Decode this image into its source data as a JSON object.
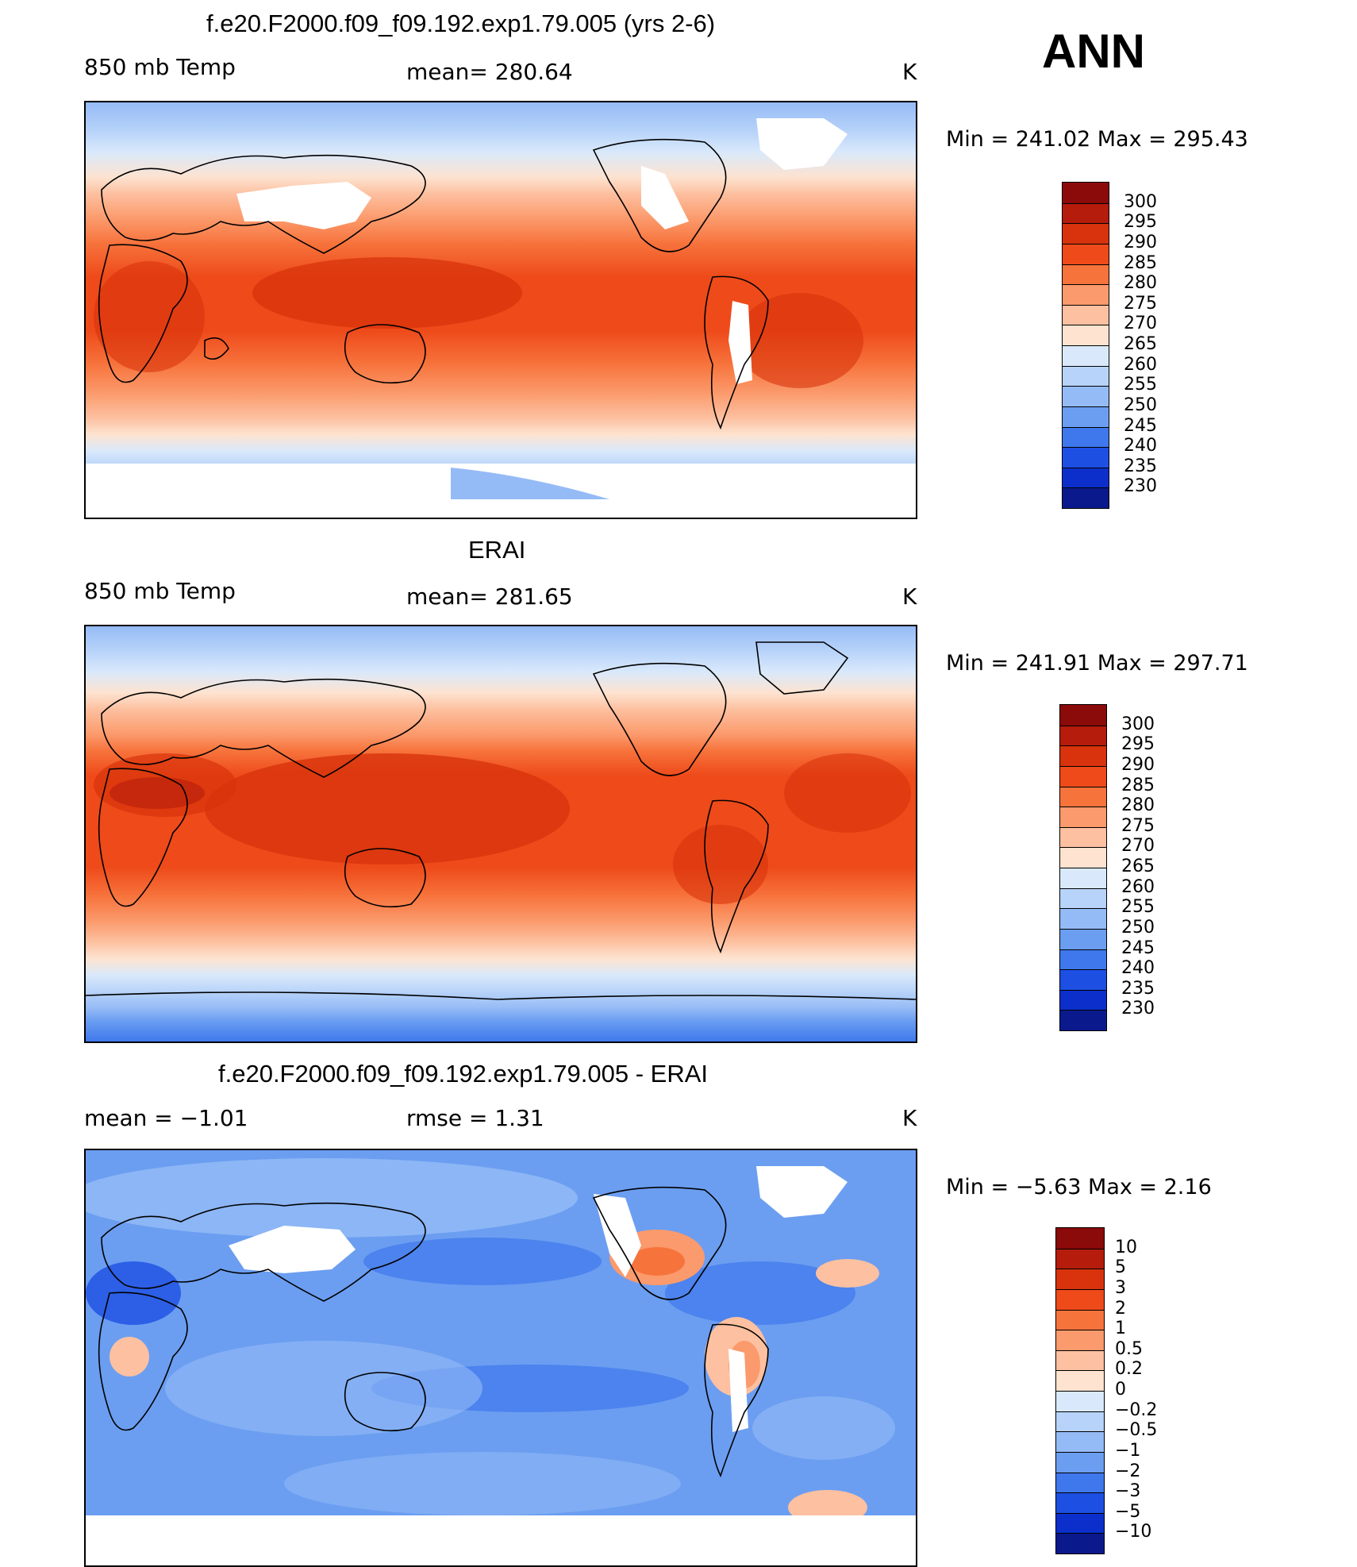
{
  "season": "ANN",
  "panels": [
    {
      "id": "model",
      "title": "f.e20.F2000.f09_f09.192.exp1.79.005 (yrs 2-6)",
      "left_label": "850 mb Temp",
      "center_label": "mean=  280.64",
      "units": "K",
      "minmax": "Min  =  241.02  Max  =  295.43"
    },
    {
      "id": "obs",
      "title": "ERAI",
      "left_label": "850 mb Temp",
      "center_label": "mean=  281.65",
      "units": "K",
      "minmax": "Min  =  241.91  Max  =  297.71"
    },
    {
      "id": "diff",
      "title": "f.e20.F2000.f09_f09.192.exp1.79.005 - ERAI",
      "left_label": "mean  =    −1.01",
      "center_label": "rmse  =     1.31",
      "units": "K",
      "minmax": "Min  =    −5.63  Max  =      2.16"
    }
  ],
  "colorbars": {
    "temp": {
      "labels": [
        "300",
        "295",
        "290",
        "285",
        "280",
        "275",
        "270",
        "265",
        "260",
        "255",
        "250",
        "245",
        "240",
        "235",
        "230"
      ],
      "colors": [
        "#8b0a0a",
        "#b51c0c",
        "#d8330c",
        "#ee4a1a",
        "#f7733c",
        "#fb9a6c",
        "#fdc0a0",
        "#fde3d0",
        "#d9e9fb",
        "#b8d3f9",
        "#95bbf6",
        "#6b9ef1",
        "#3f78ec",
        "#1d4fe3",
        "#0c2fcc",
        "#0a1a8c"
      ]
    },
    "diff": {
      "labels": [
        "10",
        "5",
        "3",
        "2",
        "1",
        "0.5",
        "0.2",
        "0",
        "−0.2",
        "−0.5",
        "−1",
        "−2",
        "−3",
        "−5",
        "−10"
      ],
      "colors": [
        "#8b0a0a",
        "#b51c0c",
        "#d8330c",
        "#ee4a1a",
        "#f7733c",
        "#fb9a6c",
        "#fdc0a0",
        "#fde3d0",
        "#d9e9fb",
        "#b8d3f9",
        "#95bbf6",
        "#6b9ef1",
        "#3f78ec",
        "#1d4fe3",
        "#0c2fcc",
        "#0a1a8c"
      ]
    }
  },
  "chart_data": [
    {
      "type": "heatmap",
      "title": "f.e20.F2000.f09_f09.192.exp1.79.005 (yrs 2-6)",
      "variable": "850 mb Temp",
      "units": "K",
      "mean": 280.64,
      "min": 241.02,
      "max": 295.43,
      "contour_levels": [
        230,
        235,
        240,
        245,
        250,
        255,
        260,
        265,
        270,
        275,
        280,
        285,
        290,
        295,
        300
      ]
    },
    {
      "type": "heatmap",
      "title": "ERAI",
      "variable": "850 mb Temp",
      "units": "K",
      "mean": 281.65,
      "min": 241.91,
      "max": 297.71,
      "contour_levels": [
        230,
        235,
        240,
        245,
        250,
        255,
        260,
        265,
        270,
        275,
        280,
        285,
        290,
        295,
        300
      ]
    },
    {
      "type": "heatmap",
      "title": "f.e20.F2000.f09_f09.192.exp1.79.005 - ERAI",
      "units": "K",
      "mean": -1.01,
      "rmse": 1.31,
      "min": -5.63,
      "max": 2.16,
      "contour_levels": [
        -10,
        -5,
        -3,
        -2,
        -1,
        -0.5,
        -0.2,
        0,
        0.2,
        0.5,
        1,
        2,
        3,
        5,
        10
      ]
    }
  ]
}
